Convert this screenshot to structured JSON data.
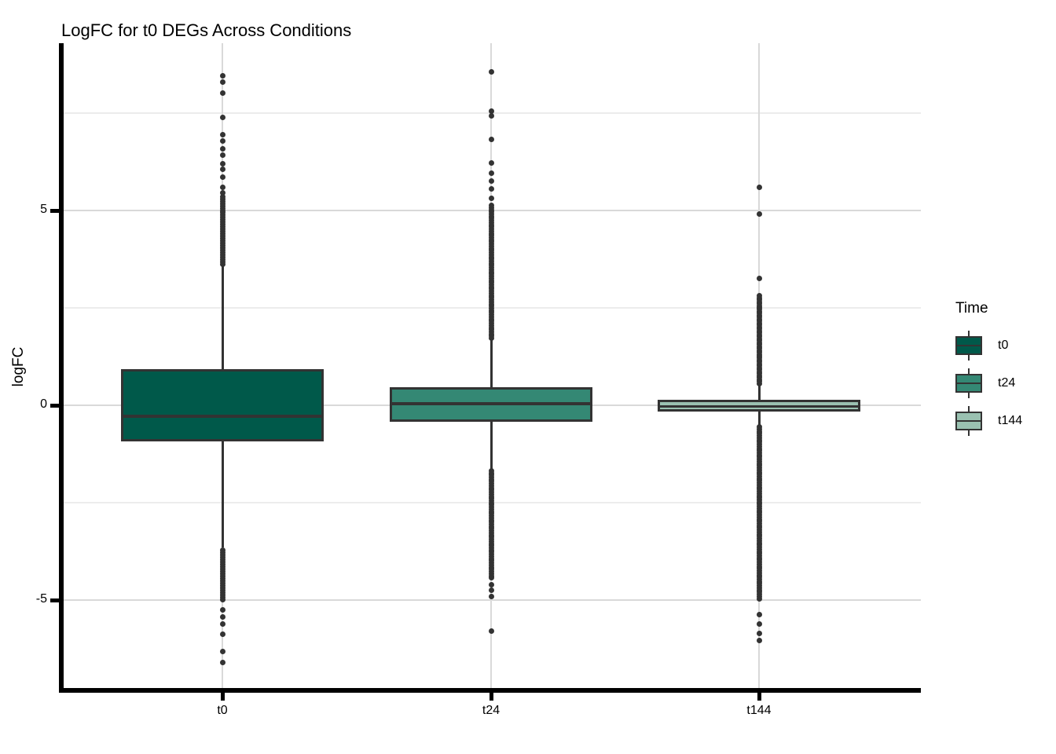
{
  "title": "LogFC for t0 DEGs Across Conditions",
  "axes": {
    "y_label": "logFC",
    "y_tick_values": [
      5,
      0,
      -5
    ],
    "y_tick_labels": [
      "5",
      "0",
      "-5"
    ],
    "y_minor_values": [
      7.5,
      2.5,
      -2.5
    ],
    "x_categories": [
      "t0",
      "t24",
      "t144"
    ]
  },
  "legend": {
    "title": "Time",
    "entries": [
      {
        "label": "t0",
        "color": "#00594A"
      },
      {
        "label": "t24",
        "color": "#348874"
      },
      {
        "label": "t144",
        "color": "#9AC1B1"
      }
    ]
  },
  "colors": {
    "stroke": "#333333",
    "axis": "#000000",
    "grid_major": "#d9d9d9",
    "grid_minor": "#ececec",
    "background": "#ffffff"
  },
  "chart_data": {
    "type": "boxplot",
    "title": "LogFC for t0 DEGs Across Conditions",
    "xlabel": "",
    "ylabel": "logFC",
    "ylim": [
      -7.3,
      9.3
    ],
    "grid": true,
    "legend_position": "right",
    "categories": [
      "t0",
      "t24",
      "t144"
    ],
    "series": [
      {
        "name": "t0",
        "fill": "#00594A",
        "whisker_low": -3.65,
        "q1": -0.93,
        "median": -0.28,
        "q3": 0.93,
        "whisker_high": 3.6,
        "outlier_runs": [
          {
            "from": 3.62,
            "to": 5.36,
            "step": 0.06
          },
          {
            "from": -3.72,
            "to": -5.0,
            "step": -0.06
          }
        ],
        "outliers": [
          5.45,
          5.6,
          5.85,
          6.05,
          6.2,
          6.42,
          6.58,
          6.78,
          6.95,
          7.38,
          8.02,
          8.3,
          8.45,
          -5.26,
          -5.44,
          -5.62,
          -5.88,
          -6.33,
          -6.6
        ]
      },
      {
        "name": "t24",
        "fill": "#348874",
        "whisker_low": -1.63,
        "q1": -0.42,
        "median": 0.05,
        "q3": 0.46,
        "whisker_high": 1.7,
        "outlier_runs": [
          {
            "from": 1.72,
            "to": 5.15,
            "step": 0.055
          },
          {
            "from": -1.68,
            "to": -4.45,
            "step": -0.055
          }
        ],
        "outliers": [
          5.32,
          5.55,
          5.75,
          5.95,
          6.21,
          6.83,
          7.42,
          7.55,
          8.55,
          -4.6,
          -4.74,
          -4.9,
          -5.79
        ]
      },
      {
        "name": "t144",
        "fill": "#9AC1B1",
        "whisker_low": -0.52,
        "q1": -0.17,
        "median": -0.04,
        "q3": 0.14,
        "whisker_high": 0.52,
        "outlier_runs": [
          {
            "from": 0.56,
            "to": 2.82,
            "step": 0.05
          },
          {
            "from": -0.56,
            "to": -4.98,
            "step": -0.055
          }
        ],
        "outliers": [
          3.25,
          4.9,
          5.6,
          -5.38,
          -5.62,
          -5.85,
          -6.03
        ]
      }
    ]
  }
}
